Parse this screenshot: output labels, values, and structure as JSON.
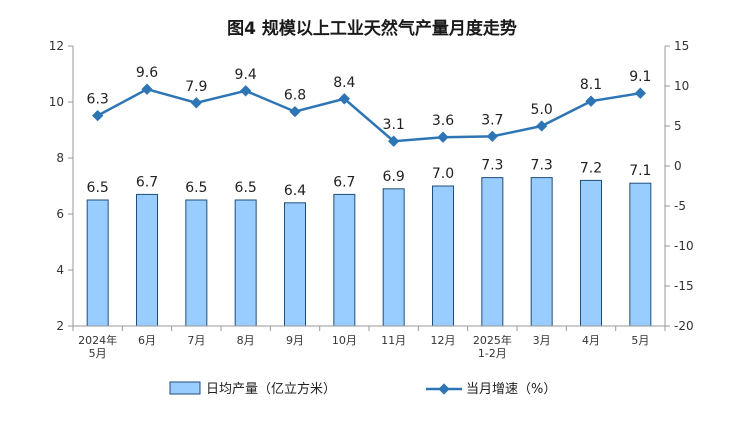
{
  "chart_data": {
    "type": "bar+line",
    "title": "图4  规模以上工业天然气产量月度走势",
    "categories": [
      [
        "2024年",
        "5月"
      ],
      [
        "6月"
      ],
      [
        "7月"
      ],
      [
        "8月"
      ],
      [
        "9月"
      ],
      [
        "10月"
      ],
      [
        "11月"
      ],
      [
        "12月"
      ],
      [
        "2025年",
        "1-2月"
      ],
      [
        "3月"
      ],
      [
        "4月"
      ],
      [
        "5月"
      ]
    ],
    "series": [
      {
        "name": "日均产量（亿立方米）",
        "type": "bar",
        "axis": "left",
        "values": [
          6.5,
          6.7,
          6.5,
          6.5,
          6.4,
          6.7,
          6.9,
          7.0,
          7.3,
          7.3,
          7.2,
          7.1
        ],
        "labels": [
          "6.5",
          "6.7",
          "6.5",
          "6.5",
          "6.4",
          "6.7",
          "6.9",
          "7.0",
          "7.3",
          "7.3",
          "7.2",
          "7.1"
        ]
      },
      {
        "name": "当月增速（%）",
        "type": "line",
        "axis": "right",
        "values": [
          6.3,
          9.6,
          7.9,
          9.4,
          6.8,
          8.4,
          3.1,
          3.6,
          3.7,
          5.0,
          8.1,
          9.1
        ],
        "labels": [
          "6.3",
          "9.6",
          "7.9",
          "9.4",
          "6.8",
          "8.4",
          "3.1",
          "3.6",
          "3.7",
          "5.0",
          "8.1",
          "9.1"
        ]
      }
    ],
    "y_left": {
      "min": 2,
      "max": 12,
      "ticks": [
        2,
        4,
        6,
        8,
        10,
        12
      ]
    },
    "y_right": {
      "min": -20,
      "max": 15,
      "ticks": [
        -20,
        -15,
        -10,
        -5,
        0,
        5,
        10,
        15
      ]
    },
    "colors": {
      "bar_fill": "#99ccff",
      "bar_stroke": "#1f4e79",
      "line": "#2e75b6",
      "axis": "#999999"
    },
    "grid": false,
    "legend_position": "bottom"
  }
}
